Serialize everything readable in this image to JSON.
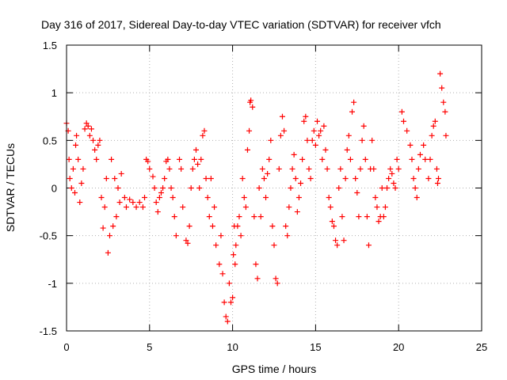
{
  "chart_data": {
    "type": "scatter",
    "title": "Day 316 of 2017, Sidereal Day-to-day VTEC variation (SDTVAR) for receiver vfch",
    "xlabel": "GPS time / hours",
    "ylabel": "SDTVAR / TECUs",
    "xlim": [
      0,
      25
    ],
    "ylim": [
      -1.5,
      1.5
    ],
    "xticks": [
      "0",
      "5",
      "10",
      "15",
      "20",
      "25"
    ],
    "yticks": [
      "1.5",
      "1",
      "0.5",
      "0",
      "-0.5",
      "-1",
      "-1.5"
    ],
    "grid": true,
    "marker": "+",
    "series": [
      {
        "name": "SDTVAR",
        "color": "#ff0000",
        "points": [
          [
            0.0,
            0.68
          ],
          [
            0.1,
            0.6
          ],
          [
            0.15,
            0.3
          ],
          [
            0.2,
            0.1
          ],
          [
            0.3,
            0.0
          ],
          [
            0.4,
            0.2
          ],
          [
            0.5,
            -0.05
          ],
          [
            0.55,
            0.45
          ],
          [
            0.6,
            0.55
          ],
          [
            0.7,
            0.3
          ],
          [
            0.8,
            -0.15
          ],
          [
            0.9,
            0.05
          ],
          [
            1.0,
            0.2
          ],
          [
            1.1,
            0.62
          ],
          [
            1.2,
            0.68
          ],
          [
            1.3,
            0.65
          ],
          [
            1.4,
            0.55
          ],
          [
            1.5,
            0.62
          ],
          [
            1.6,
            0.5
          ],
          [
            1.7,
            0.4
          ],
          [
            1.8,
            0.3
          ],
          [
            1.9,
            0.45
          ],
          [
            2.0,
            0.5
          ],
          [
            2.1,
            -0.1
          ],
          [
            2.2,
            -0.42
          ],
          [
            2.3,
            -0.2
          ],
          [
            2.4,
            0.1
          ],
          [
            2.5,
            -0.68
          ],
          [
            2.6,
            -0.5
          ],
          [
            2.7,
            0.3
          ],
          [
            2.8,
            -0.4
          ],
          [
            2.9,
            0.1
          ],
          [
            3.0,
            -0.3
          ],
          [
            3.1,
            0.0
          ],
          [
            3.2,
            -0.15
          ],
          [
            3.3,
            0.15
          ],
          [
            3.5,
            -0.1
          ],
          [
            3.6,
            -0.2
          ],
          [
            3.8,
            -0.12
          ],
          [
            4.0,
            -0.15
          ],
          [
            4.2,
            -0.2
          ],
          [
            4.4,
            -0.15
          ],
          [
            4.6,
            -0.2
          ],
          [
            4.7,
            -0.1
          ],
          [
            4.8,
            0.3
          ],
          [
            4.9,
            0.28
          ],
          [
            5.0,
            0.2
          ],
          [
            5.2,
            0.12
          ],
          [
            5.3,
            0.0
          ],
          [
            5.4,
            -0.15
          ],
          [
            5.5,
            -0.25
          ],
          [
            5.6,
            -0.1
          ],
          [
            5.7,
            -0.05
          ],
          [
            5.8,
            0.0
          ],
          [
            5.9,
            0.1
          ],
          [
            6.0,
            0.28
          ],
          [
            6.1,
            0.3
          ],
          [
            6.2,
            0.2
          ],
          [
            6.3,
            0.0
          ],
          [
            6.4,
            -0.1
          ],
          [
            6.5,
            -0.3
          ],
          [
            6.6,
            -0.5
          ],
          [
            6.8,
            0.3
          ],
          [
            6.9,
            0.2
          ],
          [
            7.0,
            -0.2
          ],
          [
            7.2,
            -0.55
          ],
          [
            7.3,
            -0.58
          ],
          [
            7.4,
            -0.4
          ],
          [
            7.5,
            0.0
          ],
          [
            7.6,
            0.2
          ],
          [
            7.7,
            0.3
          ],
          [
            7.8,
            0.4
          ],
          [
            7.9,
            0.25
          ],
          [
            8.0,
            0.0
          ],
          [
            8.1,
            0.3
          ],
          [
            8.2,
            0.55
          ],
          [
            8.3,
            0.6
          ],
          [
            8.4,
            0.1
          ],
          [
            8.5,
            -0.1
          ],
          [
            8.6,
            -0.3
          ],
          [
            8.7,
            0.1
          ],
          [
            8.8,
            -0.4
          ],
          [
            8.9,
            -0.2
          ],
          [
            9.0,
            -0.6
          ],
          [
            9.2,
            -0.8
          ],
          [
            9.3,
            -0.5
          ],
          [
            9.4,
            -0.9
          ],
          [
            9.5,
            -1.2
          ],
          [
            9.6,
            -1.35
          ],
          [
            9.7,
            -1.4
          ],
          [
            9.8,
            -1.0
          ],
          [
            9.9,
            -1.2
          ],
          [
            10.0,
            -1.15
          ],
          [
            10.05,
            -0.7
          ],
          [
            10.1,
            -0.4
          ],
          [
            10.15,
            -0.8
          ],
          [
            10.2,
            -0.6
          ],
          [
            10.3,
            -0.4
          ],
          [
            10.4,
            -0.3
          ],
          [
            10.5,
            -0.5
          ],
          [
            10.6,
            0.1
          ],
          [
            10.7,
            -0.1
          ],
          [
            10.8,
            -0.2
          ],
          [
            10.9,
            0.4
          ],
          [
            11.0,
            0.6
          ],
          [
            11.05,
            0.9
          ],
          [
            11.1,
            0.92
          ],
          [
            11.2,
            0.85
          ],
          [
            11.3,
            -0.3
          ],
          [
            11.4,
            -0.8
          ],
          [
            11.5,
            -0.95
          ],
          [
            11.6,
            0.0
          ],
          [
            11.7,
            -0.3
          ],
          [
            11.8,
            0.2
          ],
          [
            11.9,
            0.1
          ],
          [
            12.0,
            -0.1
          ],
          [
            12.1,
            0.15
          ],
          [
            12.2,
            0.3
          ],
          [
            12.3,
            0.5
          ],
          [
            12.4,
            -0.4
          ],
          [
            12.5,
            -0.6
          ],
          [
            12.6,
            -0.95
          ],
          [
            12.7,
            -1.0
          ],
          [
            12.8,
            0.2
          ],
          [
            12.9,
            0.55
          ],
          [
            13.0,
            0.75
          ],
          [
            13.1,
            0.6
          ],
          [
            13.2,
            -0.4
          ],
          [
            13.3,
            -0.5
          ],
          [
            13.4,
            -0.2
          ],
          [
            13.5,
            0.0
          ],
          [
            13.6,
            0.2
          ],
          [
            13.7,
            0.35
          ],
          [
            13.8,
            0.1
          ],
          [
            13.9,
            -0.25
          ],
          [
            14.0,
            -0.1
          ],
          [
            14.1,
            0.05
          ],
          [
            14.2,
            0.3
          ],
          [
            14.3,
            0.7
          ],
          [
            14.4,
            0.75
          ],
          [
            14.5,
            0.5
          ],
          [
            14.6,
            0.2
          ],
          [
            14.7,
            0.1
          ],
          [
            14.8,
            0.5
          ],
          [
            14.9,
            0.6
          ],
          [
            15.0,
            0.45
          ],
          [
            15.1,
            0.7
          ],
          [
            15.2,
            0.55
          ],
          [
            15.3,
            0.6
          ],
          [
            15.4,
            0.3
          ],
          [
            15.5,
            0.65
          ],
          [
            15.6,
            0.4
          ],
          [
            15.7,
            0.2
          ],
          [
            15.8,
            -0.1
          ],
          [
            15.9,
            -0.2
          ],
          [
            16.0,
            -0.35
          ],
          [
            16.1,
            -0.4
          ],
          [
            16.2,
            -0.55
          ],
          [
            16.3,
            -0.6
          ],
          [
            16.4,
            0.0
          ],
          [
            16.5,
            0.2
          ],
          [
            16.6,
            -0.3
          ],
          [
            16.7,
            -0.55
          ],
          [
            16.8,
            0.1
          ],
          [
            16.9,
            0.4
          ],
          [
            17.0,
            0.55
          ],
          [
            17.1,
            0.3
          ],
          [
            17.2,
            0.8
          ],
          [
            17.3,
            0.9
          ],
          [
            17.4,
            0.1
          ],
          [
            17.5,
            -0.05
          ],
          [
            17.6,
            -0.3
          ],
          [
            17.7,
            0.2
          ],
          [
            17.8,
            0.5
          ],
          [
            17.9,
            0.65
          ],
          [
            18.0,
            0.3
          ],
          [
            18.1,
            -0.3
          ],
          [
            18.2,
            -0.6
          ],
          [
            18.3,
            0.2
          ],
          [
            18.4,
            0.5
          ],
          [
            18.5,
            0.2
          ],
          [
            18.6,
            -0.1
          ],
          [
            18.7,
            -0.2
          ],
          [
            18.8,
            -0.35
          ],
          [
            18.9,
            -0.3
          ],
          [
            19.0,
            0.0
          ],
          [
            19.1,
            -0.3
          ],
          [
            19.2,
            -0.2
          ],
          [
            19.3,
            0.0
          ],
          [
            19.4,
            0.1
          ],
          [
            19.5,
            0.2
          ],
          [
            19.6,
            0.15
          ],
          [
            19.7,
            0.05
          ],
          [
            19.8,
            0.0
          ],
          [
            19.9,
            0.3
          ],
          [
            20.0,
            0.2
          ],
          [
            20.2,
            0.8
          ],
          [
            20.3,
            0.7
          ],
          [
            20.5,
            0.6
          ],
          [
            20.7,
            0.45
          ],
          [
            20.8,
            0.3
          ],
          [
            20.9,
            0.1
          ],
          [
            21.0,
            0.0
          ],
          [
            21.1,
            -0.1
          ],
          [
            21.2,
            0.2
          ],
          [
            21.3,
            0.35
          ],
          [
            21.5,
            0.45
          ],
          [
            21.6,
            0.3
          ],
          [
            21.8,
            0.1
          ],
          [
            21.9,
            0.3
          ],
          [
            22.0,
            0.55
          ],
          [
            22.1,
            0.65
          ],
          [
            22.2,
            0.7
          ],
          [
            22.3,
            0.2
          ],
          [
            22.35,
            0.05
          ],
          [
            22.4,
            0.1
          ],
          [
            22.5,
            1.2
          ],
          [
            22.6,
            1.05
          ],
          [
            22.7,
            0.9
          ],
          [
            22.8,
            0.8
          ],
          [
            22.85,
            0.55
          ]
        ]
      }
    ]
  }
}
